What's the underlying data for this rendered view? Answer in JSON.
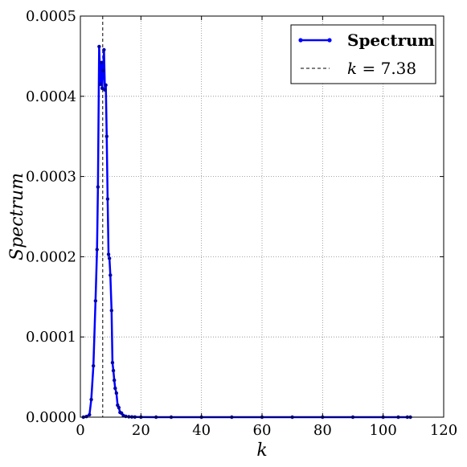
{
  "chart_data": {
    "type": "line",
    "xlabel": "k",
    "ylabel": "Spectrum",
    "xlim": [
      0,
      120
    ],
    "ylim": [
      0,
      0.0005
    ],
    "x_ticks": [
      0,
      20,
      40,
      60,
      80,
      100,
      120
    ],
    "x_tick_labels": [
      "0",
      "20",
      "40",
      "60",
      "80",
      "100",
      "120"
    ],
    "y_ticks": [
      0,
      0.0001,
      0.0002,
      0.0003,
      0.0004,
      0.0005
    ],
    "y_tick_labels": [
      "0.0000",
      "0.0001",
      "0.0002",
      "0.0003",
      "0.0004",
      "0.0005"
    ],
    "grid": true,
    "legend_position": "top-right",
    "series": [
      {
        "name": "Spectrum",
        "color": "#0000ff",
        "marker": "dot",
        "x": [
          1,
          2,
          3,
          3.6,
          4.3,
          5,
          5.5,
          5.8,
          6.2,
          6.6,
          7,
          7.2,
          7.5,
          7.8,
          8.1,
          8.4,
          8.7,
          9,
          9.3,
          9.6,
          9.9,
          10.3,
          10.6,
          10.9,
          11.2,
          11.5,
          11.9,
          12.3,
          12.7,
          13.1,
          13.6,
          14.2,
          15,
          16,
          17,
          18,
          20,
          25,
          30,
          40,
          50,
          60,
          70,
          80,
          90,
          100,
          105,
          108,
          109
        ],
        "y": [
          0,
          8e-07,
          3e-06,
          2.2e-05,
          6.4e-05,
          0.000145,
          0.000209,
          0.000287,
          0.000462,
          0.000415,
          0.000442,
          0.00041,
          0.000432,
          0.000458,
          0.000408,
          0.000414,
          0.00035,
          0.000272,
          0.000203,
          0.000198,
          0.000177,
          0.000133,
          6.8e-05,
          5.8e-05,
          4.6e-05,
          3.6e-05,
          3e-05,
          1.5e-05,
          1.2e-05,
          6e-06,
          5e-06,
          2e-06,
          1e-06,
          5e-07,
          3e-07,
          2e-07,
          1e-07,
          0,
          0,
          0,
          0,
          0,
          0,
          0,
          0,
          0,
          0,
          0,
          0
        ]
      }
    ],
    "reference_line": {
      "label": "k = 7.38",
      "label_var": "k",
      "label_value": " = 7.38",
      "x": 7.38,
      "style": "dashed",
      "color": "#000000"
    }
  }
}
